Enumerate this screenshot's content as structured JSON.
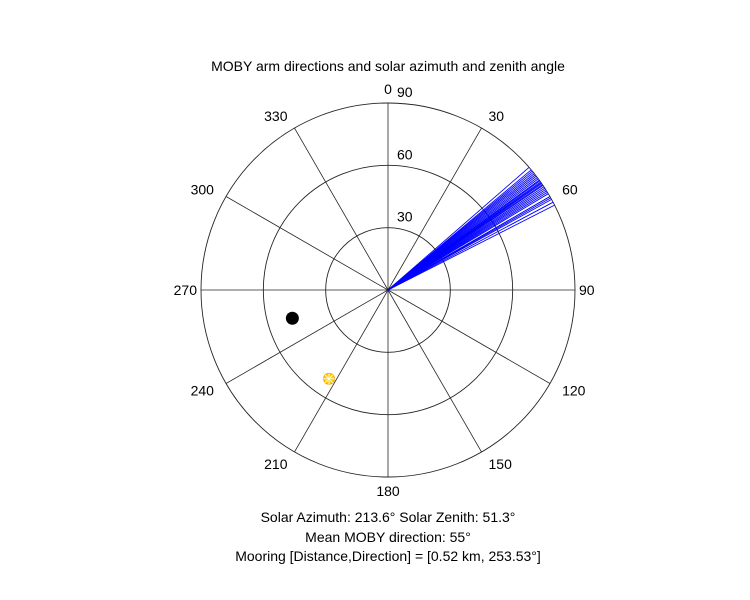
{
  "chart_data": {
    "type": "polar",
    "title": "MOBY arm directions and solar azimuth and zenith angle",
    "angle_ticks": [
      "0",
      "30",
      "60",
      "90",
      "120",
      "150",
      "180",
      "210",
      "240",
      "270",
      "300",
      "330"
    ],
    "radial_ticks": [
      "30",
      "60",
      "90"
    ],
    "rlim": [
      0,
      90
    ],
    "theta_zero": "top",
    "theta_direction": "clockwise",
    "grid": true,
    "series": [
      {
        "kind": "lines",
        "color": "#0000ff",
        "directions_deg": [
          49,
          50,
          50.5,
          51,
          51.5,
          52,
          52.5,
          53,
          53.5,
          54,
          54.3,
          54.7,
          55,
          55.3,
          55.7,
          56,
          56.5,
          57,
          57.5,
          58,
          58.5,
          59,
          60,
          60.5,
          61,
          62,
          63
        ],
        "radius": 90
      },
      {
        "kind": "point",
        "name": "mooring",
        "color": "#000000",
        "direction_deg": 253.53,
        "radius": 48
      },
      {
        "kind": "point",
        "name": "sun",
        "color": "#ffd000",
        "direction_deg": 213.6,
        "radius": 51.3
      }
    ],
    "annotations": [
      "Solar Azimuth: 213.6°    Solar Zenith: 51.3°",
      "Mean MOBY direction: 55°",
      "Mooring [Distance,Direction] = [0.52 km, 253.53°]"
    ]
  }
}
